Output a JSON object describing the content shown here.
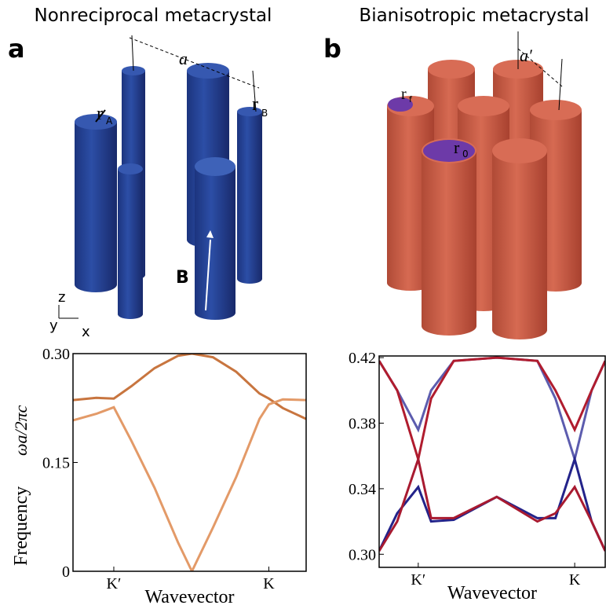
{
  "panels": [
    {
      "label": "a",
      "title": "Nonreciprocal metacrystal",
      "lattice": "a",
      "radius_a": "r",
      "radius_a_sub": "A",
      "radius_b": "r",
      "radius_b_sub": "B",
      "field": "B",
      "axes": [
        "z",
        "y",
        "x"
      ]
    },
    {
      "label": "b",
      "title": "Bianisotropic metacrystal",
      "lattice": "a′",
      "radius_f": "r",
      "radius_f_sub": "f",
      "radius_0": "r",
      "radius_0_sub": "0"
    }
  ],
  "chart_data": [
    {
      "type": "line",
      "ylabel": "Frequency",
      "ylabel_unit": "ωa/2πc",
      "xlabel": "Wavevector",
      "x": [
        0,
        0.1,
        0.175,
        0.25,
        0.35,
        0.45,
        0.51,
        0.6,
        0.7,
        0.8,
        0.84,
        0.9,
        1.0
      ],
      "xlim": [
        0,
        1
      ],
      "xticks": [
        {
          "value": 0.175,
          "label": "K′"
        },
        {
          "value": 0.84,
          "label": "K"
        }
      ],
      "ylim": [
        0,
        0.3
      ],
      "yticks": [
        0,
        0.15,
        {
          "value": 0.3,
          "label": "0.30"
        }
      ],
      "series": [
        {
          "color": "#c8753f",
          "values": [
            0.236,
            0.239,
            0.238,
            0.255,
            0.28,
            0.297,
            0.3,
            0.295,
            0.275,
            0.245,
            0.238,
            0.225,
            0.21
          ]
        },
        {
          "color": "#e39a68",
          "values": [
            0.208,
            0.217,
            0.226,
            0.18,
            0.115,
            0.04,
            0.0,
            0.06,
            0.13,
            0.21,
            0.23,
            0.237,
            0.236
          ]
        }
      ]
    },
    {
      "type": "line",
      "xlabel": "Wavevector",
      "x": [
        0,
        0.08,
        0.173,
        0.23,
        0.33,
        0.52,
        0.7,
        0.78,
        0.865,
        0.94,
        1.0
      ],
      "xlim": [
        0,
        1
      ],
      "xticks": [
        {
          "value": 0.173,
          "label": "K′"
        },
        {
          "value": 0.865,
          "label": "K"
        }
      ],
      "ylim": [
        0.292,
        0.421
      ],
      "yticks": [
        {
          "value": 0.3,
          "label": "0.30"
        },
        0.34,
        0.38,
        0.42
      ],
      "series": [
        {
          "color": "#5c5cae",
          "values": [
            0.418,
            0.4,
            0.376,
            0.4,
            0.418,
            0.42,
            0.418,
            0.395,
            0.358,
            0.4,
            0.418
          ]
        },
        {
          "color": "#23238a",
          "values": [
            0.302,
            0.325,
            0.341,
            0.32,
            0.321,
            0.335,
            0.322,
            0.322,
            0.358,
            0.32,
            0.302
          ]
        },
        {
          "color": "#b01c2e",
          "values": [
            0.418,
            0.4,
            0.358,
            0.395,
            0.418,
            0.42,
            0.418,
            0.4,
            0.376,
            0.4,
            0.418
          ]
        },
        {
          "color": "#a81a30",
          "values": [
            0.302,
            0.32,
            0.358,
            0.322,
            0.322,
            0.335,
            0.32,
            0.325,
            0.341,
            0.32,
            0.302
          ]
        }
      ]
    }
  ]
}
